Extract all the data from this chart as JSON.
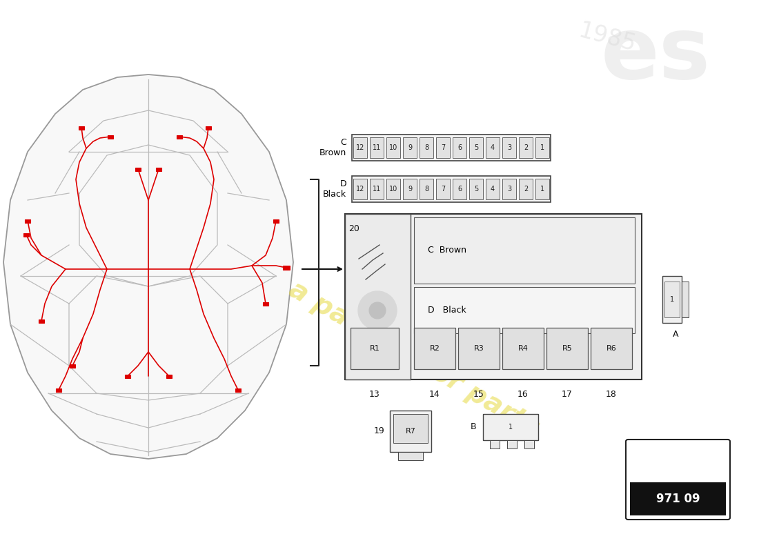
{
  "background_color": "#ffffff",
  "car_outline_color": "#999999",
  "wiring_color": "#dd0000",
  "fuse_box_color": "#444444",
  "fuse_box_fill": "#f2f2f2",
  "label_color": "#000000",
  "watermark_color": "#e8dc50",
  "page_number": "971 09",
  "fuse_slots": [
    "12",
    "11",
    "10",
    "9",
    "8",
    "7",
    "6",
    "5",
    "4",
    "3",
    "2",
    "1"
  ],
  "relay_labels": [
    "R1",
    "R2",
    "R3",
    "R4",
    "R5",
    "R6"
  ],
  "relay7_label": "R7",
  "connector_A_label": "A",
  "connector_B_label": "B",
  "main_box_C_label": "C  Brown",
  "main_box_D_label": "D   Black",
  "num_20": "20",
  "num_13": "13",
  "num_14": "14",
  "num_15": "15",
  "num_16": "16",
  "num_17": "17",
  "num_18": "18",
  "num_19": "19"
}
